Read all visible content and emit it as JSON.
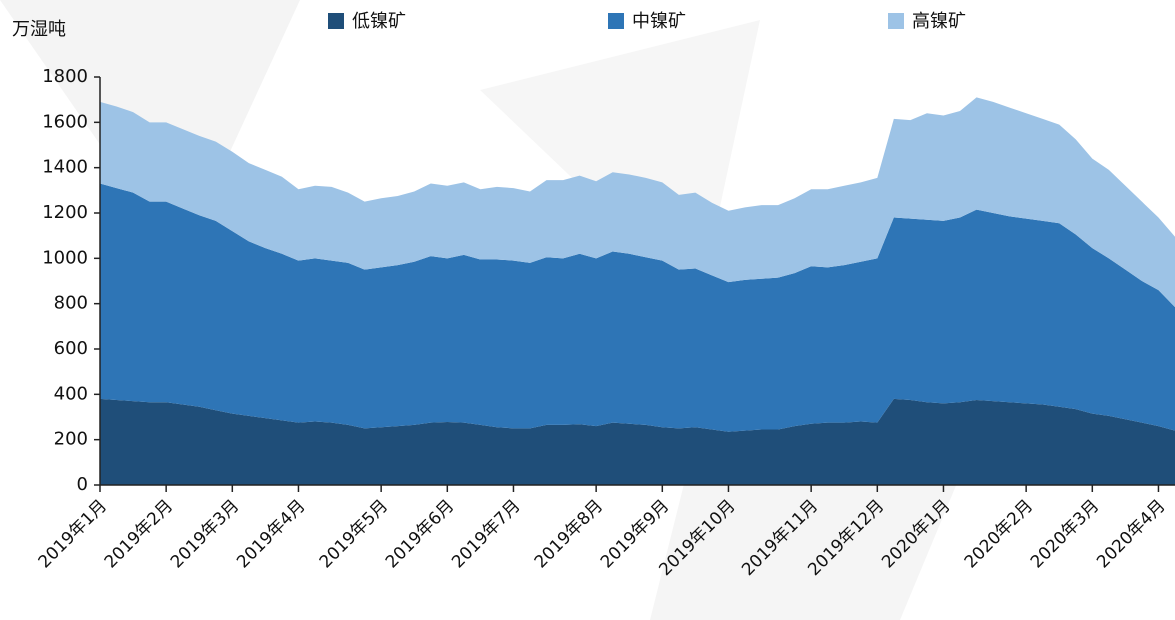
{
  "chart_data": {
    "type": "stacked_area",
    "y_label": "万湿吨",
    "categories": [
      "2019年1月",
      null,
      null,
      null,
      "2019年2月",
      null,
      null,
      null,
      "2019年3月",
      null,
      null,
      null,
      "2019年4月",
      null,
      null,
      null,
      null,
      "2019年5月",
      null,
      null,
      null,
      "2019年6月",
      null,
      null,
      null,
      "2019年7月",
      null,
      null,
      null,
      null,
      "2019年8月",
      null,
      null,
      null,
      "2019年9月",
      null,
      null,
      null,
      "2019年10月",
      null,
      null,
      null,
      null,
      "2019年11月",
      null,
      null,
      null,
      "2019年12月",
      null,
      null,
      null,
      "2020年1月",
      null,
      null,
      null,
      null,
      "2020年2月",
      null,
      null,
      null,
      "2020年3月",
      null,
      null,
      null,
      "2020年4月",
      null
    ],
    "series": [
      {
        "name": "低镍矿",
        "color": "#1f4e79",
        "values": [
          380,
          375,
          370,
          365,
          365,
          355,
          345,
          330,
          315,
          305,
          295,
          285,
          275,
          280,
          275,
          265,
          250,
          255,
          260,
          265,
          275,
          278,
          275,
          265,
          255,
          250,
          250,
          265,
          265,
          268,
          260,
          275,
          270,
          265,
          255,
          250,
          255,
          245,
          235,
          240,
          245,
          245,
          260,
          270,
          275,
          275,
          280,
          275,
          380,
          375,
          365,
          360,
          365,
          375,
          370,
          365,
          360,
          355,
          345,
          335,
          315,
          305,
          290,
          275,
          260,
          240
        ]
      },
      {
        "name": "中镍矿",
        "color": "#2e75b6",
        "values": [
          950,
          935,
          920,
          885,
          885,
          865,
          845,
          835,
          805,
          770,
          750,
          735,
          715,
          720,
          715,
          715,
          700,
          705,
          710,
          720,
          735,
          722,
          740,
          730,
          740,
          740,
          730,
          740,
          735,
          752,
          740,
          755,
          750,
          740,
          735,
          700,
          700,
          680,
          660,
          665,
          665,
          670,
          675,
          695,
          685,
          695,
          705,
          725,
          800,
          800,
          805,
          805,
          815,
          840,
          830,
          820,
          815,
          810,
          810,
          770,
          730,
          695,
          660,
          625,
          600,
          545
        ]
      },
      {
        "name": "高镍矿",
        "color": "#9dc3e6",
        "values": [
          360,
          360,
          355,
          350,
          350,
          350,
          350,
          350,
          350,
          345,
          345,
          340,
          315,
          320,
          325,
          310,
          300,
          305,
          305,
          310,
          320,
          320,
          320,
          310,
          320,
          320,
          315,
          340,
          345,
          345,
          340,
          350,
          350,
          350,
          345,
          330,
          335,
          320,
          315,
          320,
          325,
          320,
          330,
          340,
          345,
          350,
          350,
          355,
          435,
          435,
          470,
          465,
          470,
          495,
          490,
          480,
          465,
          450,
          435,
          420,
          395,
          390,
          370,
          350,
          320,
          310
        ]
      }
    ],
    "ylim": [
      0,
      1800
    ],
    "yticks": [
      0,
      200,
      400,
      600,
      800,
      1000,
      1200,
      1400,
      1600,
      1800
    ],
    "legend": "top"
  }
}
